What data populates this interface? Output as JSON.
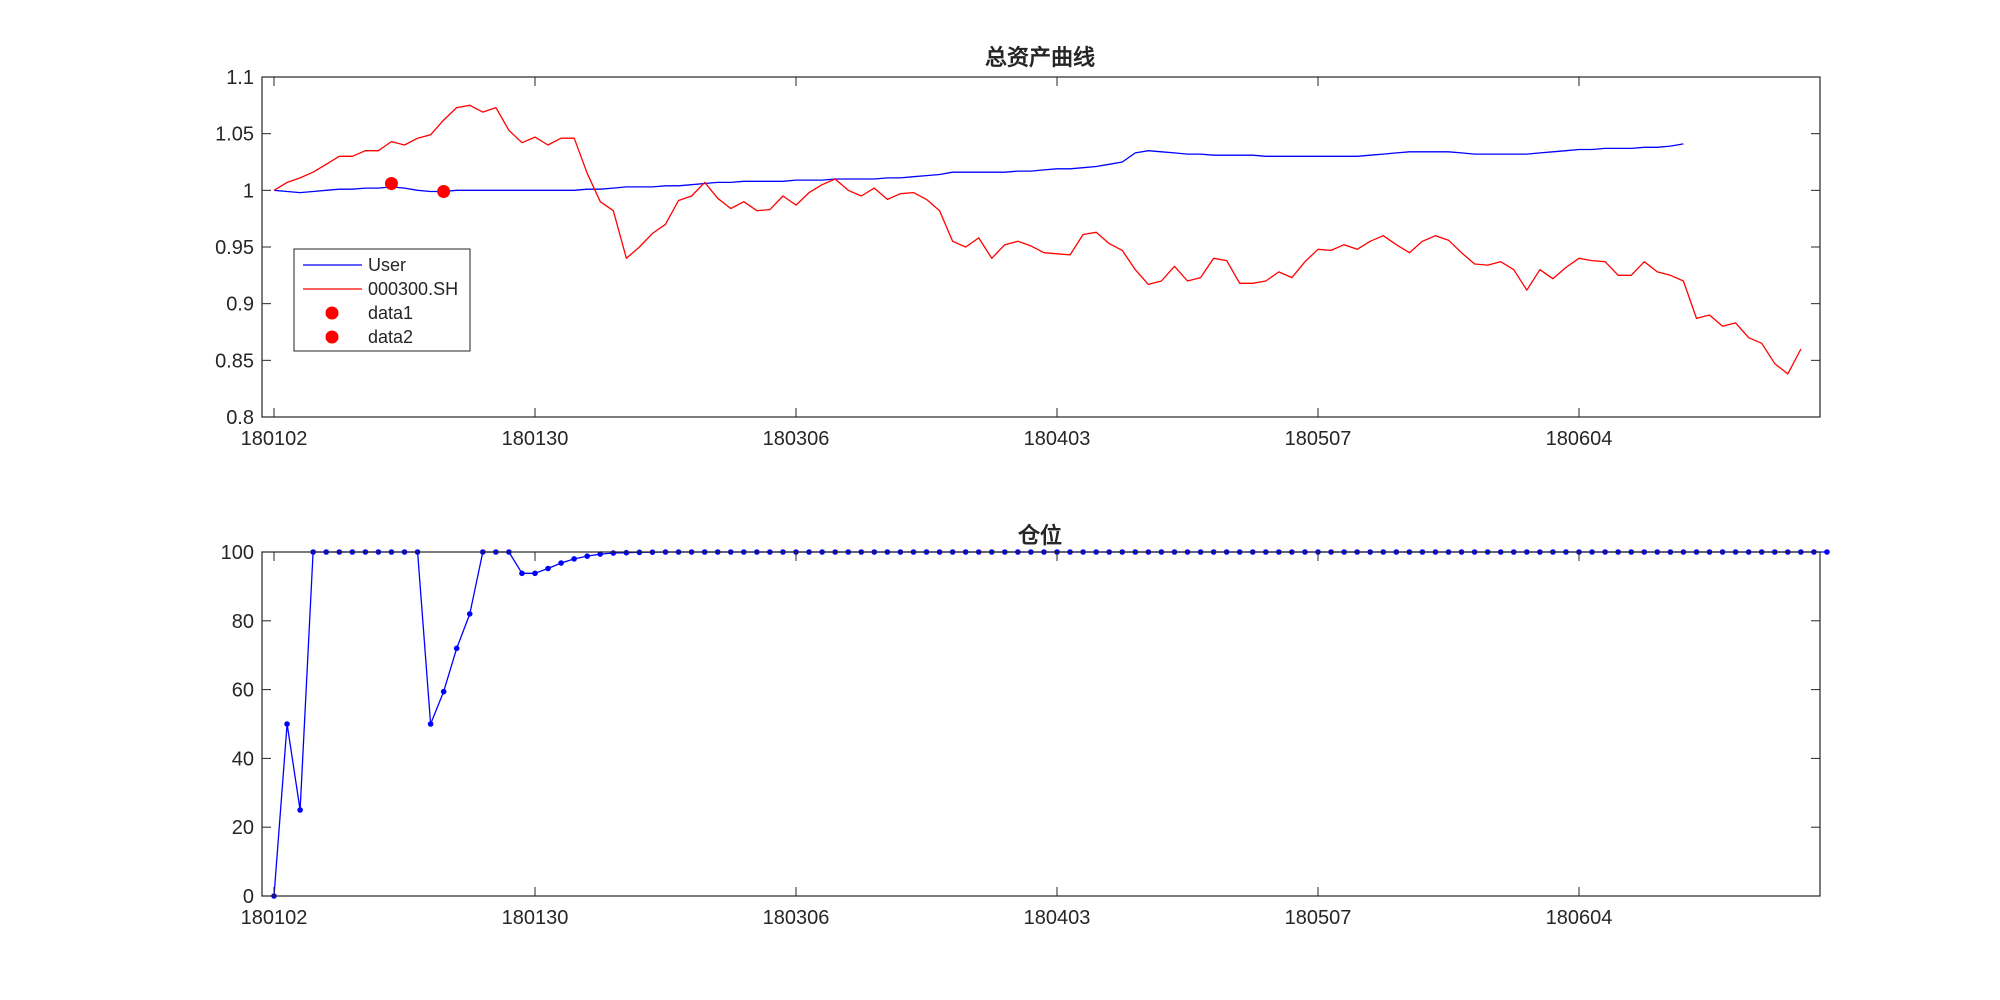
{
  "chart_data": [
    {
      "type": "line",
      "title": "总资产曲线",
      "xlabel": "",
      "ylabel": "",
      "ylim": [
        0.8,
        1.1
      ],
      "yticks": [
        "0.8",
        "0.85",
        "0.9",
        "0.95",
        "1",
        "1.05",
        "1.1"
      ],
      "xticks": [
        "180102",
        "180130",
        "180306",
        "180403",
        "180507",
        "180604"
      ],
      "grid": false,
      "legend_position": "left",
      "series": [
        {
          "name": "User",
          "color": "#0000ff",
          "values": [
            1.0,
            0.999,
            0.998,
            0.999,
            1.0,
            1.001,
            1.001,
            1.002,
            1.002,
            1.003,
            1.002,
            1.0,
            0.999,
            0.999,
            1.0,
            1.0,
            1.0,
            1.0,
            1.0,
            1.0,
            1.0,
            1.0,
            1.0,
            1.0,
            1.001,
            1.001,
            1.002,
            1.003,
            1.003,
            1.003,
            1.004,
            1.004,
            1.005,
            1.006,
            1.007,
            1.007,
            1.008,
            1.008,
            1.008,
            1.008,
            1.009,
            1.009,
            1.009,
            1.01,
            1.01,
            1.01,
            1.01,
            1.011,
            1.011,
            1.012,
            1.013,
            1.014,
            1.016,
            1.016,
            1.016,
            1.016,
            1.016,
            1.017,
            1.017,
            1.018,
            1.019,
            1.019,
            1.02,
            1.021,
            1.023,
            1.025,
            1.033,
            1.035,
            1.034,
            1.033,
            1.032,
            1.032,
            1.031,
            1.031,
            1.031,
            1.031,
            1.03,
            1.03,
            1.03,
            1.03,
            1.03,
            1.03,
            1.03,
            1.03,
            1.031,
            1.032,
            1.033,
            1.034,
            1.034,
            1.034,
            1.034,
            1.033,
            1.032,
            1.032,
            1.032,
            1.032,
            1.032,
            1.033,
            1.034,
            1.035,
            1.036,
            1.036,
            1.037,
            1.037,
            1.037,
            1.038,
            1.038,
            1.039,
            1.041
          ]
        },
        {
          "name": "000300.SH",
          "color": "#ff0000",
          "values": [
            1.0,
            1.007,
            1.011,
            1.016,
            1.023,
            1.03,
            1.03,
            1.035,
            1.035,
            1.043,
            1.04,
            1.046,
            1.049,
            1.062,
            1.073,
            1.075,
            1.069,
            1.073,
            1.053,
            1.042,
            1.047,
            1.04,
            1.046,
            1.046,
            1.015,
            0.99,
            0.982,
            0.94,
            0.95,
            0.962,
            0.97,
            0.991,
            0.995,
            1.007,
            0.993,
            0.984,
            0.99,
            0.982,
            0.983,
            0.995,
            0.987,
            0.998,
            1.005,
            1.01,
            1.0,
            0.995,
            1.002,
            0.992,
            0.997,
            0.998,
            0.992,
            0.982,
            0.955,
            0.95,
            0.958,
            0.94,
            0.952,
            0.955,
            0.951,
            0.945,
            0.944,
            0.943,
            0.961,
            0.963,
            0.953,
            0.947,
            0.93,
            0.917,
            0.92,
            0.933,
            0.92,
            0.923,
            0.94,
            0.938,
            0.918,
            0.918,
            0.92,
            0.928,
            0.923,
            0.937,
            0.948,
            0.947,
            0.952,
            0.948,
            0.955,
            0.96,
            0.952,
            0.945,
            0.955,
            0.96,
            0.956,
            0.945,
            0.935,
            0.934,
            0.937,
            0.93,
            0.912,
            0.93,
            0.922,
            0.932,
            0.94,
            0.938,
            0.937,
            0.925,
            0.925,
            0.937,
            0.928,
            0.925,
            0.92,
            0.887,
            0.89,
            0.88,
            0.883,
            0.87,
            0.865,
            0.847,
            0.838,
            0.86
          ]
        }
      ],
      "markers": [
        {
          "name": "data1",
          "color": "#ff0000",
          "x": 9,
          "y": 1.006
        },
        {
          "name": "data2",
          "color": "#ff0000",
          "x": 13,
          "y": 0.999
        }
      ]
    },
    {
      "type": "line",
      "title": "仓位",
      "xlabel": "",
      "ylabel": "",
      "ylim": [
        0,
        100
      ],
      "yticks": [
        "0",
        "20",
        "40",
        "60",
        "80",
        "100"
      ],
      "xticks": [
        "180102",
        "180130",
        "180306",
        "180403",
        "180507",
        "180604"
      ],
      "grid": false,
      "series": [
        {
          "name": "",
          "color": "#0000ff",
          "marker": "dot",
          "values": [
            0,
            50,
            25,
            100,
            100,
            100,
            100,
            100,
            100,
            100,
            100,
            100,
            50,
            59.4,
            72,
            82,
            100,
            100,
            100,
            93.8,
            93.8,
            95.2,
            96.8,
            98,
            98.8,
            99.4,
            99.7,
            99.8,
            99.9,
            99.95,
            100,
            100,
            100,
            100,
            100,
            100,
            100,
            100,
            100,
            100,
            100,
            100,
            100,
            100,
            100,
            100,
            100,
            100,
            100,
            100,
            100,
            100,
            100,
            100,
            100,
            100,
            100,
            100,
            100,
            100,
            100,
            100,
            100,
            100,
            100,
            100,
            100,
            100,
            100,
            100,
            100,
            100,
            100,
            100,
            100,
            100,
            100,
            100,
            100,
            100,
            100,
            100,
            100,
            100,
            100,
            100,
            100,
            100,
            100,
            100,
            100,
            100,
            100,
            100,
            100,
            100,
            100,
            100,
            100,
            100,
            100,
            100,
            100,
            100,
            100,
            100,
            100,
            100,
            100,
            100,
            100,
            100,
            100,
            100,
            100,
            100,
            100,
            100,
            100,
            100
          ]
        }
      ]
    }
  ]
}
